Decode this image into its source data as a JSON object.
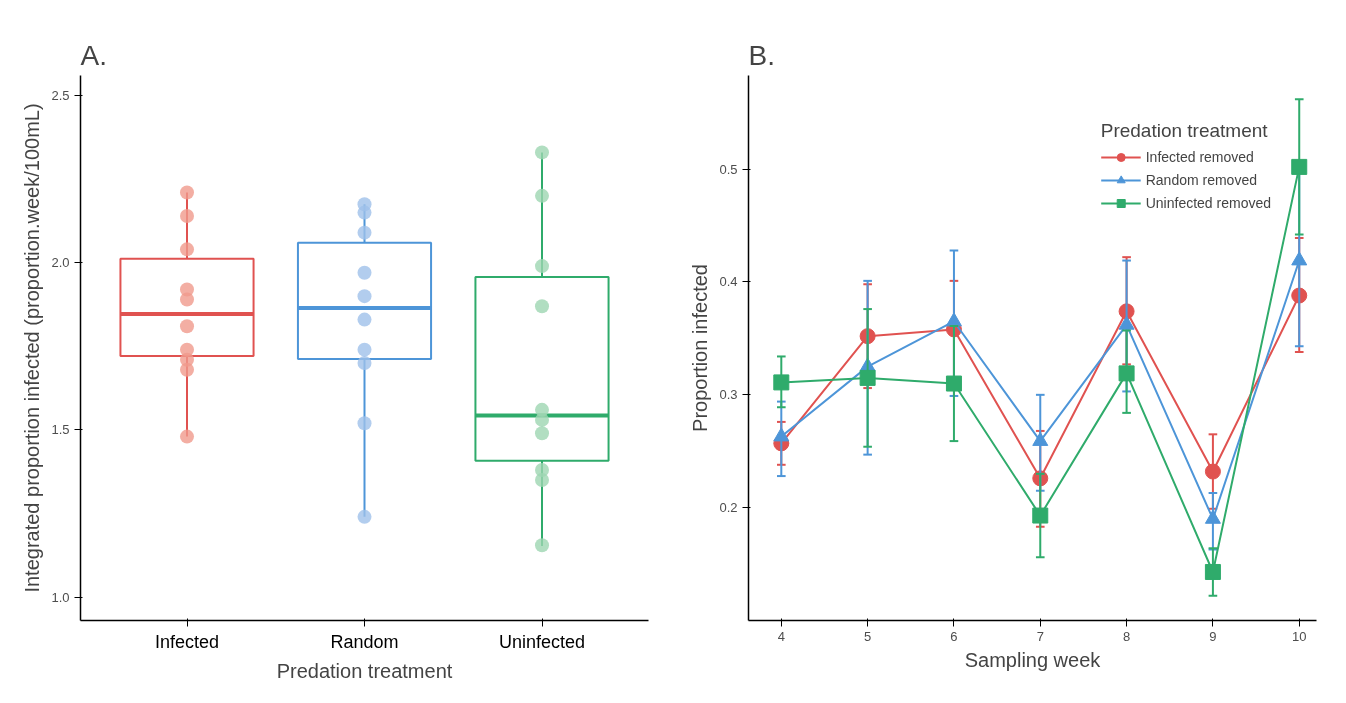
{
  "chart_data": [
    {
      "type": "box",
      "title": "A.",
      "xlabel": "Predation treatment",
      "ylabel": "Integrated proportion infected (proportion.week/100mL)",
      "categories": [
        "Infected",
        "Random",
        "Uninfected"
      ],
      "colors": [
        "#e05250",
        "#4d95d8",
        "#2fab6b"
      ],
      "boxes": [
        {
          "low": 1.48,
          "q1": 1.721,
          "median": 1.847,
          "q3": 2.012,
          "high": 2.21
        },
        {
          "low": 1.24,
          "q1": 1.712,
          "median": 1.865,
          "q3": 2.06,
          "high": 2.175
        },
        {
          "low": 1.153,
          "q1": 1.408,
          "median": 1.543,
          "q3": 1.957,
          "high": 2.33
        }
      ],
      "series": [
        {
          "type": "scatter",
          "color": "#f09a8c",
          "x": [
            "Infected",
            "Infected",
            "Infected",
            "Infected",
            "Infected",
            "Infected",
            "Infected",
            "Infected",
            "Infected",
            "Infected"
          ],
          "values": [
            2.21,
            2.14,
            2.04,
            1.92,
            1.89,
            1.81,
            1.74,
            1.71,
            1.68,
            1.48
          ]
        },
        {
          "type": "scatter",
          "color": "#9fc0ea",
          "x": [
            "Random",
            "Random",
            "Random",
            "Random",
            "Random",
            "Random",
            "Random",
            "Random",
            "Random",
            "Random"
          ],
          "values": [
            2.175,
            2.15,
            2.09,
            1.97,
            1.9,
            1.83,
            1.74,
            1.7,
            1.52,
            1.24
          ]
        },
        {
          "type": "scatter",
          "color": "#9ed6b2",
          "x": [
            "Uninfected",
            "Uninfected",
            "Uninfected",
            "Uninfected",
            "Uninfected",
            "Uninfected",
            "Uninfected",
            "Uninfected",
            "Uninfected",
            "Uninfected"
          ],
          "values": [
            2.33,
            2.2,
            1.99,
            1.87,
            1.56,
            1.53,
            1.49,
            1.38,
            1.35,
            1.155
          ]
        }
      ],
      "ylim": [
        0.93,
        2.56
      ],
      "yticks": [
        {
          "value": 1,
          "label": "1.0"
        },
        {
          "value": 1.5,
          "label": "1.5"
        },
        {
          "value": 2,
          "label": "2.0"
        },
        {
          "value": 2.5,
          "label": "2.5"
        }
      ],
      "grid": false,
      "legend": false
    },
    {
      "type": "line",
      "title": "B.",
      "xlabel": "Sampling week",
      "ylabel": "Proportion infected",
      "legend_title": "Predation treatment",
      "x": [
        4,
        5,
        6,
        7,
        8,
        9,
        10
      ],
      "series": [
        {
          "name": "Infected removed",
          "color": "#e05250",
          "marker": "circle",
          "values": [
            0.257,
            0.352,
            0.358,
            0.226,
            0.374,
            0.232,
            0.388
          ],
          "errors": [
            [
              0.238,
              0.276
            ],
            [
              0.306,
              0.398
            ],
            [
              0.315,
              0.401
            ],
            [
              0.183,
              0.268
            ],
            [
              0.327,
              0.422
            ],
            [
              0.199,
              0.265
            ],
            [
              0.338,
              0.439
            ]
          ]
        },
        {
          "name": "Random removed",
          "color": "#4d95d8",
          "marker": "triangle",
          "values": [
            0.263,
            0.325,
            0.365,
            0.259,
            0.362,
            0.19,
            0.419
          ],
          "errors": [
            [
              0.228,
              0.294
            ],
            [
              0.247,
              0.401
            ],
            [
              0.299,
              0.428
            ],
            [
              0.215,
              0.3
            ],
            [
              0.303,
              0.419
            ],
            [
              0.163,
              0.213
            ],
            [
              0.343,
              0.497
            ]
          ]
        },
        {
          "name": "Uninfected removed",
          "color": "#2fab6b",
          "marker": "square",
          "values": [
            0.311,
            0.315,
            0.31,
            0.193,
            0.319,
            0.143,
            0.502
          ],
          "errors": [
            [
              0.289,
              0.334
            ],
            [
              0.254,
              0.376
            ],
            [
              0.259,
              0.361
            ],
            [
              0.156,
              0.23
            ],
            [
              0.284,
              0.357
            ],
            [
              0.122,
              0.164
            ],
            [
              0.442,
              0.562
            ]
          ]
        }
      ],
      "xlim": [
        3.62,
        10.2
      ],
      "xticks": [
        4,
        5,
        6,
        7,
        8,
        9,
        10
      ],
      "ylim": [
        0.1,
        0.583
      ],
      "yticks": [
        0.2,
        0.3,
        0.4,
        0.5
      ],
      "grid": false,
      "legend": "top right",
      "line_style": "solid"
    }
  ]
}
